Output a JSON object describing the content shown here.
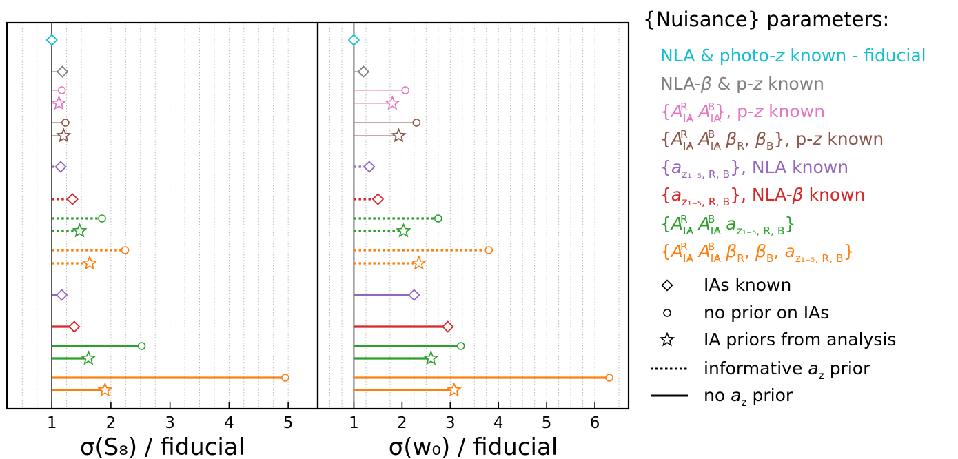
{
  "legend": {
    "title": "{Nuisance} parameters:",
    "colors": {
      "fiducial": "#17becf",
      "nla_beta_pz": "#7f7f7f",
      "aia_pz": "#e377c2",
      "aia_beta_pz": "#8c564b",
      "az_nla": "#9467bd",
      "az_nla_beta": "#d62728",
      "aia_az": "#2ca02c",
      "aia_beta_az": "#ff7f0e"
    },
    "items": [
      {
        "key": "fiducial",
        "parts": [
          {
            "t": "NLA & photo-"
          },
          {
            "t": "z",
            "i": true
          },
          {
            "t": " known - fiducial"
          }
        ]
      },
      {
        "key": "nla_beta_pz",
        "parts": [
          {
            "t": "NLA-"
          },
          {
            "t": "β",
            "i": true
          },
          {
            "t": " & p-"
          },
          {
            "t": "z",
            "i": true
          },
          {
            "t": " known"
          }
        ]
      },
      {
        "key": "aia_pz",
        "parts": [
          {
            "t": "{"
          },
          {
            "t": "A",
            "i": true
          },
          {
            "t": "IA",
            "sub": true
          },
          {
            "t": "R",
            "sup": true
          },
          {
            "t": ", "
          },
          {
            "t": "A",
            "i": true
          },
          {
            "t": "IA",
            "sub": true
          },
          {
            "t": "B",
            "sup": true
          },
          {
            "t": "}, p-"
          },
          {
            "t": "z",
            "i": true
          },
          {
            "t": " known"
          }
        ]
      },
      {
        "key": "aia_beta_pz",
        "parts": [
          {
            "t": "{"
          },
          {
            "t": "A",
            "i": true
          },
          {
            "t": "IA",
            "sub": true
          },
          {
            "t": "R",
            "sup": true
          },
          {
            "t": ", "
          },
          {
            "t": "A",
            "i": true
          },
          {
            "t": "IA",
            "sub": true
          },
          {
            "t": "B",
            "sup": true
          },
          {
            "t": ", "
          },
          {
            "t": "β",
            "i": true
          },
          {
            "t": "R",
            "sub": true
          },
          {
            "t": ", "
          },
          {
            "t": "β",
            "i": true
          },
          {
            "t": "B",
            "sub": true
          },
          {
            "t": "}, p-"
          },
          {
            "t": "z",
            "i": true
          },
          {
            "t": " known"
          }
        ]
      },
      {
        "key": "az_nla",
        "parts": [
          {
            "t": "{"
          },
          {
            "t": "a",
            "i": true
          },
          {
            "t": "z₁₋₅, R, B",
            "sub": true
          },
          {
            "t": "}, NLA known"
          }
        ]
      },
      {
        "key": "az_nla_beta",
        "parts": [
          {
            "t": "{"
          },
          {
            "t": "a",
            "i": true
          },
          {
            "t": "z₁₋₅, R, B",
            "sub": true
          },
          {
            "t": "}, NLA-"
          },
          {
            "t": "β",
            "i": true
          },
          {
            "t": " known"
          }
        ]
      },
      {
        "key": "aia_az",
        "parts": [
          {
            "t": "{"
          },
          {
            "t": "A",
            "i": true
          },
          {
            "t": "IA",
            "sub": true
          },
          {
            "t": "R",
            "sup": true
          },
          {
            "t": ", "
          },
          {
            "t": "A",
            "i": true
          },
          {
            "t": "IA",
            "sub": true
          },
          {
            "t": "B",
            "sup": true
          },
          {
            "t": ", "
          },
          {
            "t": "a",
            "i": true
          },
          {
            "t": "z₁₋₅, R, B",
            "sub": true
          },
          {
            "t": "}"
          }
        ]
      },
      {
        "key": "aia_beta_az",
        "parts": [
          {
            "t": "{"
          },
          {
            "t": "A",
            "i": true
          },
          {
            "t": "IA",
            "sub": true
          },
          {
            "t": "R",
            "sup": true
          },
          {
            "t": ", "
          },
          {
            "t": "A",
            "i": true
          },
          {
            "t": "IA",
            "sub": true
          },
          {
            "t": "B",
            "sup": true
          },
          {
            "t": ", "
          },
          {
            "t": "β",
            "i": true
          },
          {
            "t": "R",
            "sub": true
          },
          {
            "t": ", "
          },
          {
            "t": "β",
            "i": true
          },
          {
            "t": "B",
            "sub": true
          },
          {
            "t": ", "
          },
          {
            "t": "a",
            "i": true
          },
          {
            "t": "z₁₋₅, R, B",
            "sub": true
          },
          {
            "t": "}"
          }
        ]
      }
    ],
    "marker_items": [
      {
        "marker": "diamond",
        "label": "IAs known"
      },
      {
        "marker": "circle",
        "label": "no prior on IAs"
      },
      {
        "marker": "star",
        "label": "IA priors from analysis"
      },
      {
        "line": "dotted",
        "parts": [
          {
            "t": "informative "
          },
          {
            "t": "a",
            "i": true
          },
          {
            "t": "z",
            "sub": true
          },
          {
            "t": " prior"
          }
        ]
      },
      {
        "line": "solid",
        "parts": [
          {
            "t": "no "
          },
          {
            "t": "a",
            "i": true
          },
          {
            "t": "z",
            "sub": true
          },
          {
            "t": " prior"
          }
        ]
      }
    ]
  },
  "chart_data": [
    {
      "type": "scatter",
      "xlabel": "σ(S₈) / fiducial",
      "xlim": [
        0.24,
        5.5
      ],
      "xticks": [
        1,
        2,
        3,
        4,
        5
      ],
      "minor_grid_step": 0.25,
      "grid": "minor-x dotted",
      "baseline": 1,
      "points": [
        {
          "key": "fiducial",
          "marker": "diamond",
          "line": "none",
          "value": 1.0
        },
        {
          "key": "nla_beta_pz",
          "marker": "diamond",
          "line": "thin",
          "value": 1.18
        },
        {
          "key": "aia_pz",
          "marker": "circle",
          "line": "thin",
          "value": 1.17
        },
        {
          "key": "aia_pz",
          "marker": "star",
          "line": "thin",
          "value": 1.12
        },
        {
          "key": "aia_beta_pz",
          "marker": "circle",
          "line": "thin",
          "value": 1.23
        },
        {
          "key": "aia_beta_pz",
          "marker": "star",
          "line": "thin",
          "value": 1.2
        },
        {
          "key": "az_nla",
          "marker": "diamond",
          "line": "dotted",
          "value": 1.15
        },
        {
          "key": "az_nla_beta",
          "marker": "diamond",
          "line": "dotted",
          "value": 1.35
        },
        {
          "key": "aia_az",
          "marker": "circle",
          "line": "dotted",
          "value": 1.85
        },
        {
          "key": "aia_az",
          "marker": "star",
          "line": "dotted",
          "value": 1.47
        },
        {
          "key": "aia_beta_az",
          "marker": "circle",
          "line": "dotted",
          "value": 2.24
        },
        {
          "key": "aia_beta_az",
          "marker": "star",
          "line": "dotted",
          "value": 1.64
        },
        {
          "key": "az_nla",
          "marker": "diamond",
          "line": "solid",
          "value": 1.17
        },
        {
          "key": "az_nla_beta",
          "marker": "diamond",
          "line": "solid",
          "value": 1.38
        },
        {
          "key": "aia_az",
          "marker": "circle",
          "line": "solid",
          "value": 2.52
        },
        {
          "key": "aia_az",
          "marker": "star",
          "line": "solid",
          "value": 1.62
        },
        {
          "key": "aia_beta_az",
          "marker": "circle",
          "line": "solid",
          "value": 4.95
        },
        {
          "key": "aia_beta_az",
          "marker": "star",
          "line": "solid",
          "value": 1.9
        }
      ]
    },
    {
      "type": "scatter",
      "xlabel": "σ(w₀) / fiducial",
      "xlim": [
        0.25,
        6.7
      ],
      "xticks": [
        1,
        2,
        3,
        4,
        5,
        6
      ],
      "minor_grid_step": 0.25,
      "grid": "minor-x dotted",
      "baseline": 1,
      "points": [
        {
          "key": "fiducial",
          "marker": "diamond",
          "line": "none",
          "value": 1.0
        },
        {
          "key": "nla_beta_pz",
          "marker": "diamond",
          "line": "thin",
          "value": 1.2
        },
        {
          "key": "aia_pz",
          "marker": "circle",
          "line": "thin",
          "value": 2.07
        },
        {
          "key": "aia_pz",
          "marker": "star",
          "line": "thin",
          "value": 1.8
        },
        {
          "key": "aia_beta_pz",
          "marker": "circle",
          "line": "thin",
          "value": 2.3
        },
        {
          "key": "aia_beta_pz",
          "marker": "star",
          "line": "thin",
          "value": 1.93
        },
        {
          "key": "az_nla",
          "marker": "diamond",
          "line": "dotted",
          "value": 1.32
        },
        {
          "key": "az_nla_beta",
          "marker": "diamond",
          "line": "dotted",
          "value": 1.5
        },
        {
          "key": "aia_az",
          "marker": "circle",
          "line": "dotted",
          "value": 2.75
        },
        {
          "key": "aia_az",
          "marker": "star",
          "line": "dotted",
          "value": 2.03
        },
        {
          "key": "aia_beta_az",
          "marker": "circle",
          "line": "dotted",
          "value": 3.8
        },
        {
          "key": "aia_beta_az",
          "marker": "star",
          "line": "dotted",
          "value": 2.35
        },
        {
          "key": "az_nla",
          "marker": "diamond",
          "line": "solid",
          "value": 2.25
        },
        {
          "key": "az_nla_beta",
          "marker": "diamond",
          "line": "solid",
          "value": 2.95
        },
        {
          "key": "aia_az",
          "marker": "circle",
          "line": "solid",
          "value": 3.22
        },
        {
          "key": "aia_az",
          "marker": "star",
          "line": "solid",
          "value": 2.6
        },
        {
          "key": "aia_beta_az",
          "marker": "circle",
          "line": "solid",
          "value": 6.3
        },
        {
          "key": "aia_beta_az",
          "marker": "star",
          "line": "solid",
          "value": 3.08
        }
      ]
    }
  ]
}
